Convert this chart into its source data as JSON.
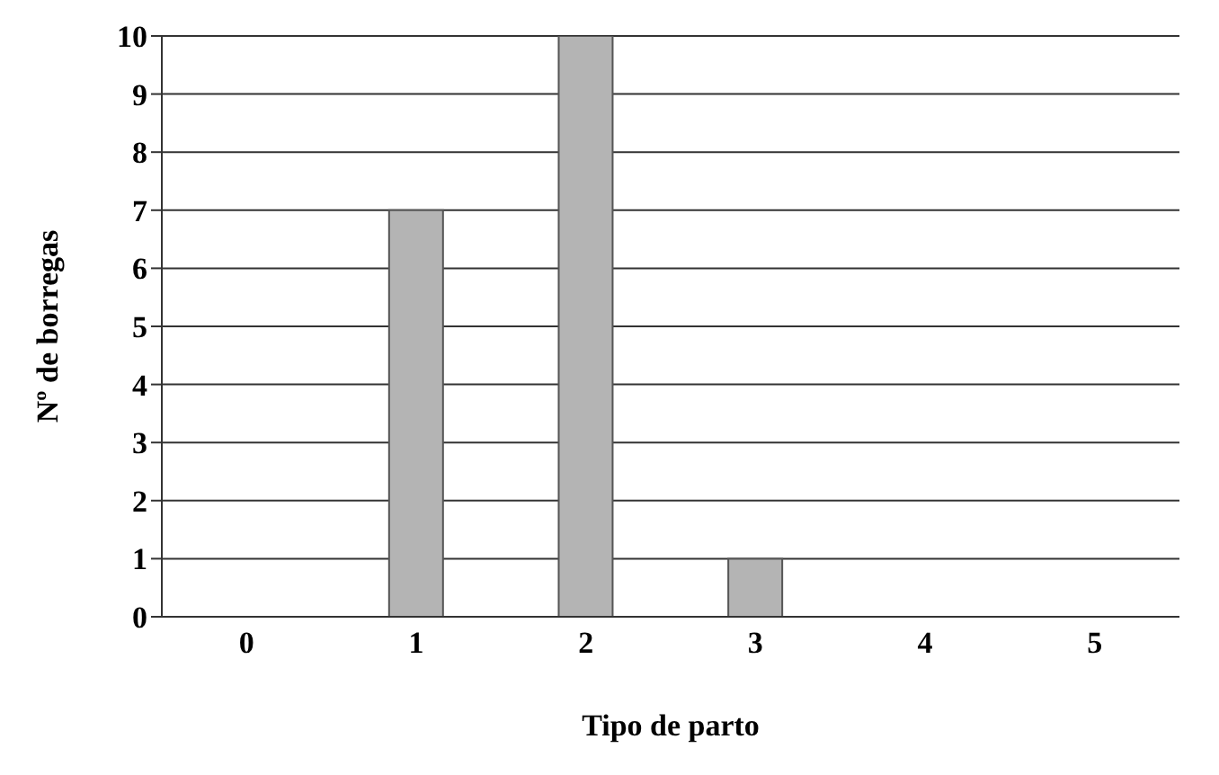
{
  "chart_data": {
    "type": "bar",
    "xlabel": "Tipo de parto",
    "ylabel": "Nº de borregas",
    "categories": [
      "0",
      "1",
      "2",
      "3",
      "4",
      "5"
    ],
    "values": [
      0,
      7,
      10,
      1,
      0,
      0
    ],
    "color": "#b4b4b4",
    "ylim": [
      0,
      10
    ],
    "yticks": [
      0,
      1,
      2,
      3,
      4,
      5,
      6,
      7,
      8,
      9,
      10
    ],
    "grid": "y"
  }
}
